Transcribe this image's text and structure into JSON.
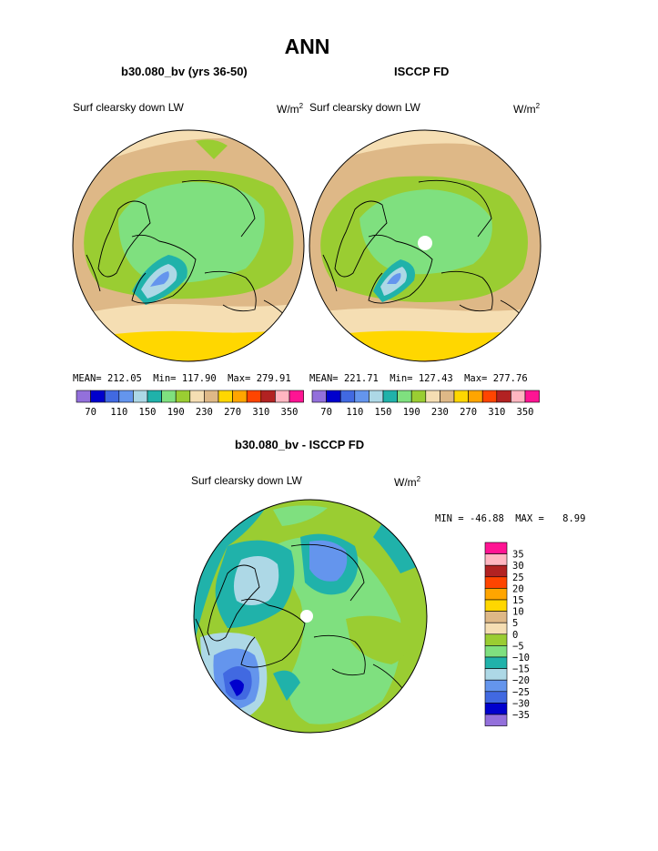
{
  "page": {
    "title": "ANN",
    "left_subtitle": "b30.080_bv (yrs 36-50)",
    "right_subtitle": "ISCCP FD",
    "diff_subtitle": "b30.080_bv - ISCCP FD"
  },
  "chart_data": [
    {
      "type": "heatmap",
      "projection": "north-polar-stereographic",
      "title": "b30.080_bv (yrs 36-50)",
      "field": "Surf clearsky down LW",
      "units": "W/m2",
      "units_base": "W/m",
      "units_exp": "2",
      "stats": {
        "mean_label": "MEAN=",
        "mean": "212.05",
        "min_label": "Min=",
        "min": "117.90",
        "max_label": "Max=",
        "max": "279.91"
      },
      "colorbar": {
        "orientation": "horizontal",
        "colors": [
          "#9370db",
          "#0000cd",
          "#4169e1",
          "#6495ed",
          "#add8e6",
          "#20b2aa",
          "#7fe07f",
          "#9acd32",
          "#f5deb3",
          "#deb887",
          "#ffd700",
          "#ffa500",
          "#ff4500",
          "#b22222",
          "#ffb6c1",
          "#ff1493"
        ],
        "tick_labels": [
          "70",
          "110",
          "150",
          "190",
          "230",
          "270",
          "310",
          "350"
        ]
      }
    },
    {
      "type": "heatmap",
      "projection": "north-polar-stereographic",
      "title": "ISCCP FD",
      "field": "Surf clearsky down LW",
      "units": "W/m2",
      "units_base": "W/m",
      "units_exp": "2",
      "stats": {
        "mean_label": "MEAN=",
        "mean": "221.71",
        "min_label": "Min=",
        "min": "127.43",
        "max_label": "Max=",
        "max": "277.76"
      },
      "colorbar": {
        "orientation": "horizontal",
        "colors": [
          "#9370db",
          "#0000cd",
          "#4169e1",
          "#6495ed",
          "#add8e6",
          "#20b2aa",
          "#7fe07f",
          "#9acd32",
          "#f5deb3",
          "#deb887",
          "#ffd700",
          "#ffa500",
          "#ff4500",
          "#b22222",
          "#ffb6c1",
          "#ff1493"
        ],
        "tick_labels": [
          "70",
          "110",
          "150",
          "190",
          "230",
          "270",
          "310",
          "350"
        ]
      }
    },
    {
      "type": "heatmap",
      "projection": "north-polar-stereographic",
      "title": "b30.080_bv - ISCCP FD",
      "field": "Surf clearsky down LW",
      "units": "W/m2",
      "units_base": "W/m",
      "units_exp": "2",
      "stats": {
        "min_label": "MIN =",
        "min": "-46.88",
        "max_label": "MAX =",
        "max": "8.99"
      },
      "colorbar": {
        "orientation": "vertical",
        "colors": [
          "#ff1493",
          "#ffb6c1",
          "#b22222",
          "#ff4500",
          "#ffa500",
          "#ffd700",
          "#deb887",
          "#f5deb3",
          "#9acd32",
          "#7fe07f",
          "#20b2aa",
          "#add8e6",
          "#6495ed",
          "#4169e1",
          "#0000cd",
          "#9370db"
        ],
        "tick_labels": [
          "35",
          "30",
          "25",
          "20",
          "15",
          "10",
          "5",
          "0",
          "−5",
          "−10",
          "−15",
          "−20",
          "−25",
          "−30",
          "−35"
        ]
      }
    }
  ]
}
